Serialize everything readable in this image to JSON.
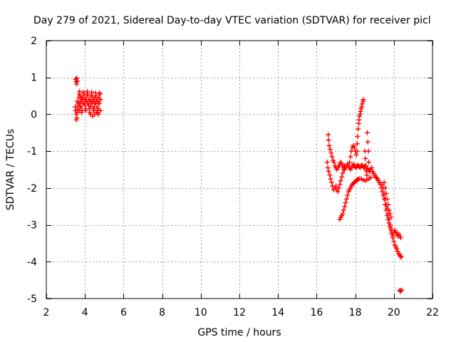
{
  "chart_data": {
    "type": "scatter",
    "title": "Day 279 of 2021, Sidereal Day-to-day VTEC variation (SDTVAR) for receiver picl",
    "xlabel": "GPS time / hours",
    "ylabel": "SDTVAR / TECUs",
    "xlim": [
      2,
      22
    ],
    "ylim": [
      -5,
      2
    ],
    "xticks": [
      2,
      4,
      6,
      8,
      10,
      12,
      14,
      16,
      18,
      20,
      22
    ],
    "yticks": [
      -5,
      -4,
      -3,
      -2,
      -1,
      0,
      1,
      2
    ],
    "grid": true,
    "marker": "+",
    "colors": {
      "series": "#ff0000",
      "grid": "#a0a0a0",
      "axis": "#000000"
    },
    "series": [
      {
        "name": "SDTVAR",
        "points": [
          [
            3.52,
            0.95
          ],
          [
            3.55,
            0.88
          ],
          [
            3.58,
            0.98
          ],
          [
            3.6,
            0.9
          ],
          [
            3.57,
            0.82
          ],
          [
            3.5,
            0.2
          ],
          [
            3.52,
            0.1
          ],
          [
            3.55,
            0.0
          ],
          [
            3.55,
            -0.15
          ],
          [
            3.58,
            -0.1
          ],
          [
            3.6,
            0.05
          ],
          [
            3.62,
            0.15
          ],
          [
            3.65,
            0.3
          ],
          [
            3.68,
            0.45
          ],
          [
            3.7,
            0.55
          ],
          [
            3.72,
            0.62
          ],
          [
            3.75,
            0.5
          ],
          [
            3.78,
            0.35
          ],
          [
            3.8,
            0.2
          ],
          [
            3.82,
            0.05
          ],
          [
            3.85,
            0.1
          ],
          [
            3.88,
            0.3
          ],
          [
            3.9,
            0.45
          ],
          [
            3.92,
            0.6
          ],
          [
            3.95,
            0.55
          ],
          [
            3.98,
            0.4
          ],
          [
            4.0,
            0.25
          ],
          [
            4.02,
            0.1
          ],
          [
            4.05,
            0.15
          ],
          [
            4.08,
            0.35
          ],
          [
            4.1,
            0.5
          ],
          [
            4.12,
            0.62
          ],
          [
            4.15,
            0.55
          ],
          [
            4.18,
            0.4
          ],
          [
            4.2,
            0.25
          ],
          [
            4.22,
            0.15
          ],
          [
            4.25,
            0.05
          ],
          [
            4.28,
            0.2
          ],
          [
            4.3,
            0.35
          ],
          [
            4.32,
            0.5
          ],
          [
            4.35,
            0.6
          ],
          [
            4.38,
            0.5
          ],
          [
            4.4,
            0.35
          ],
          [
            4.42,
            0.2
          ],
          [
            4.45,
            0.1
          ],
          [
            4.48,
            0.15
          ],
          [
            4.5,
            0.3
          ],
          [
            4.52,
            0.45
          ],
          [
            4.55,
            0.58
          ],
          [
            4.58,
            0.5
          ],
          [
            4.6,
            0.35
          ],
          [
            4.62,
            0.2
          ],
          [
            4.65,
            0.05
          ],
          [
            4.68,
            0.15
          ],
          [
            4.7,
            0.3
          ],
          [
            4.72,
            0.45
          ],
          [
            4.75,
            0.58
          ],
          [
            4.78,
            0.55
          ],
          [
            4.8,
            0.4
          ],
          [
            3.7,
            0.1
          ],
          [
            3.75,
            0.2
          ],
          [
            3.85,
            0.4
          ],
          [
            3.95,
            0.3
          ],
          [
            4.05,
            0.4
          ],
          [
            4.15,
            0.3
          ],
          [
            4.25,
            0.4
          ],
          [
            4.35,
            0.3
          ],
          [
            4.45,
            0.4
          ],
          [
            4.55,
            0.3
          ],
          [
            4.65,
            0.4
          ],
          [
            4.75,
            0.3
          ],
          [
            4.3,
            0.0
          ],
          [
            4.4,
            -0.05
          ],
          [
            4.5,
            0.0
          ],
          [
            4.6,
            0.05
          ],
          [
            4.7,
            0.0
          ],
          [
            4.8,
            0.1
          ],
          [
            3.6,
            0.35
          ],
          [
            3.65,
            0.25
          ],
          [
            3.72,
            0.3
          ],
          [
            3.8,
            0.45
          ],
          [
            16.6,
            -0.55
          ],
          [
            16.62,
            -0.7
          ],
          [
            16.65,
            -0.85
          ],
          [
            16.7,
            -0.95
          ],
          [
            16.75,
            -1.05
          ],
          [
            16.8,
            -1.15
          ],
          [
            16.85,
            -1.25
          ],
          [
            16.9,
            -1.3
          ],
          [
            16.95,
            -1.4
          ],
          [
            17.0,
            -1.45
          ],
          [
            17.05,
            -1.5
          ],
          [
            17.1,
            -1.45
          ],
          [
            17.15,
            -1.4
          ],
          [
            17.2,
            -1.35
          ],
          [
            17.25,
            -1.3
          ],
          [
            17.3,
            -1.35
          ],
          [
            17.35,
            -1.4
          ],
          [
            17.4,
            -1.45
          ],
          [
            17.45,
            -1.5
          ],
          [
            17.5,
            -1.45
          ],
          [
            17.55,
            -1.4
          ],
          [
            17.6,
            -1.35
          ],
          [
            17.65,
            -1.4
          ],
          [
            17.7,
            -1.45
          ],
          [
            17.75,
            -1.5
          ],
          [
            17.8,
            -1.45
          ],
          [
            17.85,
            -1.4
          ],
          [
            17.9,
            -1.35
          ],
          [
            17.95,
            -1.4
          ],
          [
            18.0,
            -1.42
          ],
          [
            18.05,
            -1.45
          ],
          [
            18.1,
            -1.4
          ],
          [
            18.15,
            -1.38
          ],
          [
            18.2,
            -1.42
          ],
          [
            18.25,
            -1.45
          ],
          [
            18.3,
            -1.4
          ],
          [
            18.35,
            -1.38
          ],
          [
            18.4,
            -1.42
          ],
          [
            18.45,
            -1.45
          ],
          [
            18.5,
            -1.4
          ],
          [
            18.55,
            -1.45
          ],
          [
            18.6,
            -1.5
          ],
          [
            18.65,
            -1.48
          ],
          [
            18.7,
            -1.52
          ],
          [
            18.75,
            -1.55
          ],
          [
            18.8,
            -1.5
          ],
          [
            18.85,
            -1.45
          ],
          [
            16.55,
            -1.3
          ],
          [
            16.58,
            -1.45
          ],
          [
            16.62,
            -1.55
          ],
          [
            16.68,
            -1.65
          ],
          [
            16.72,
            -1.75
          ],
          [
            16.78,
            -1.85
          ],
          [
            16.82,
            -1.95
          ],
          [
            16.88,
            -2.05
          ],
          [
            16.95,
            -2.0
          ],
          [
            17.0,
            -1.95
          ],
          [
            17.05,
            -2.05
          ],
          [
            17.1,
            -2.1
          ],
          [
            17.15,
            -2.0
          ],
          [
            17.2,
            -1.9
          ],
          [
            17.25,
            -1.8
          ],
          [
            17.3,
            -1.7
          ],
          [
            17.35,
            -1.6
          ],
          [
            17.4,
            -1.5
          ],
          [
            17.45,
            -1.4
          ],
          [
            17.2,
            -2.85
          ],
          [
            17.25,
            -2.8
          ],
          [
            17.3,
            -2.75
          ],
          [
            17.35,
            -2.7
          ],
          [
            17.4,
            -2.6
          ],
          [
            17.45,
            -2.5
          ],
          [
            17.5,
            -2.4
          ],
          [
            17.55,
            -2.3
          ],
          [
            17.6,
            -2.2
          ],
          [
            17.65,
            -2.1
          ],
          [
            17.7,
            -2.05
          ],
          [
            17.75,
            -2.0
          ],
          [
            17.8,
            -1.95
          ],
          [
            17.85,
            -1.9
          ],
          [
            17.9,
            -1.88
          ],
          [
            17.95,
            -1.85
          ],
          [
            18.0,
            -1.82
          ],
          [
            18.05,
            -1.8
          ],
          [
            18.1,
            -1.78
          ],
          [
            18.15,
            -1.76
          ],
          [
            18.2,
            -1.75
          ],
          [
            18.3,
            -1.75
          ],
          [
            18.4,
            -1.78
          ],
          [
            18.5,
            -1.8
          ],
          [
            18.6,
            -1.78
          ],
          [
            18.7,
            -1.75
          ],
          [
            18.8,
            -1.72
          ],
          [
            17.7,
            -1.3
          ],
          [
            17.75,
            -1.15
          ],
          [
            17.8,
            -1.0
          ],
          [
            17.85,
            -0.9
          ],
          [
            17.9,
            -0.85
          ],
          [
            17.95,
            -0.9
          ],
          [
            18.0,
            -1.0
          ],
          [
            18.05,
            -1.1
          ],
          [
            18.1,
            -1.0
          ],
          [
            18.1,
            -0.8
          ],
          [
            18.12,
            -0.6
          ],
          [
            18.15,
            -0.4
          ],
          [
            18.18,
            -0.25
          ],
          [
            18.2,
            -0.15
          ],
          [
            18.22,
            -0.05
          ],
          [
            18.25,
            0.0
          ],
          [
            18.28,
            0.08
          ],
          [
            18.3,
            0.15
          ],
          [
            18.33,
            0.2
          ],
          [
            18.36,
            0.28
          ],
          [
            18.4,
            0.35
          ],
          [
            18.42,
            0.4
          ],
          [
            18.5,
            -1.0
          ],
          [
            18.52,
            -1.2
          ],
          [
            18.55,
            -1.4
          ],
          [
            18.58,
            -1.55
          ],
          [
            18.6,
            -1.65
          ],
          [
            18.62,
            -0.5
          ],
          [
            18.65,
            -0.75
          ],
          [
            18.68,
            -1.0
          ],
          [
            18.7,
            -1.3
          ],
          [
            18.9,
            -1.55
          ],
          [
            18.95,
            -1.6
          ],
          [
            19.0,
            -1.65
          ],
          [
            19.05,
            -1.7
          ],
          [
            19.1,
            -1.72
          ],
          [
            19.15,
            -1.75
          ],
          [
            19.2,
            -1.8
          ],
          [
            19.25,
            -1.85
          ],
          [
            19.3,
            -1.9
          ],
          [
            19.35,
            -2.0
          ],
          [
            19.4,
            -2.1
          ],
          [
            19.45,
            -2.2
          ],
          [
            19.5,
            -2.3
          ],
          [
            19.55,
            -2.45
          ],
          [
            19.6,
            -2.6
          ],
          [
            19.65,
            -2.75
          ],
          [
            19.7,
            -2.85
          ],
          [
            19.75,
            -2.95
          ],
          [
            19.8,
            -3.05
          ],
          [
            19.85,
            -3.15
          ],
          [
            19.9,
            -3.25
          ],
          [
            19.95,
            -3.3
          ],
          [
            20.0,
            -3.2
          ],
          [
            20.05,
            -3.15
          ],
          [
            20.1,
            -3.2
          ],
          [
            20.15,
            -3.25
          ],
          [
            20.2,
            -3.3
          ],
          [
            20.25,
            -3.25
          ],
          [
            20.3,
            -3.3
          ],
          [
            20.35,
            -3.35
          ],
          [
            19.4,
            -1.9
          ],
          [
            19.45,
            -2.0
          ],
          [
            19.5,
            -2.15
          ],
          [
            19.55,
            -2.3
          ],
          [
            19.6,
            -2.45
          ],
          [
            19.65,
            -2.55
          ],
          [
            19.7,
            -2.7
          ],
          [
            19.75,
            -2.85
          ],
          [
            19.8,
            -3.0
          ],
          [
            19.85,
            -3.1
          ],
          [
            19.9,
            -3.2
          ],
          [
            19.95,
            -3.35
          ],
          [
            20.0,
            -3.45
          ],
          [
            20.05,
            -3.55
          ],
          [
            20.1,
            -3.6
          ],
          [
            20.15,
            -3.65
          ],
          [
            20.2,
            -3.72
          ],
          [
            20.25,
            -3.78
          ],
          [
            20.3,
            -3.82
          ],
          [
            20.35,
            -3.85
          ],
          [
            20.38,
            -3.88
          ],
          [
            19.5,
            -1.85
          ],
          [
            19.55,
            -2.0
          ],
          [
            19.6,
            -2.15
          ],
          [
            19.65,
            -2.3
          ],
          [
            19.7,
            -2.45
          ],
          [
            19.75,
            -2.6
          ],
          [
            19.8,
            -2.7
          ],
          [
            19.85,
            -2.8
          ],
          [
            20.3,
            -4.78
          ],
          [
            20.35,
            -4.8
          ],
          [
            20.4,
            -4.77
          ]
        ]
      }
    ]
  }
}
